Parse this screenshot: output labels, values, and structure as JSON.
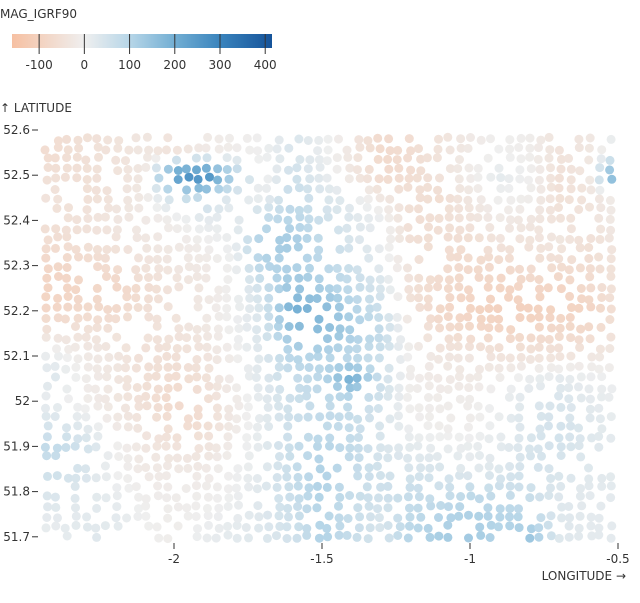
{
  "chart_data": {
    "type": "scatter",
    "color_legend": {
      "title": "MAG_IGRF90",
      "ticks": [
        -100,
        0,
        100,
        200,
        300,
        400
      ],
      "domain": [
        -160,
        415
      ],
      "scheme": "diverging red-blue",
      "colors": {
        "-160": "#f6c0a2",
        "0": "#efefef",
        "100": "#b7d6e8",
        "200": "#72aed3",
        "300": "#3a84bd",
        "415": "#15539a"
      }
    },
    "xlabel": "LONGITUDE →",
    "ylabel": "↑ LATITUDE",
    "x_ticks": [
      {
        "v": -2,
        "label": "-2"
      },
      {
        "v": -1.5,
        "label": "-1.5"
      },
      {
        "v": -1,
        "label": "-1"
      },
      {
        "v": -0.5,
        "label": "-0.5"
      }
    ],
    "y_ticks": [
      {
        "v": 52.6,
        "label": "52.6"
      },
      {
        "v": 52.5,
        "label": "52.5"
      },
      {
        "v": 52.4,
        "label": "52.4"
      },
      {
        "v": 52.3,
        "label": "52.3"
      },
      {
        "v": 52.2,
        "label": "52.2"
      },
      {
        "v": 52.1,
        "label": "52.1"
      },
      {
        "v": 52.0,
        "label": "52"
      },
      {
        "v": 51.9,
        "label": "51.9"
      },
      {
        "v": 51.8,
        "label": "51.8"
      },
      {
        "v": 51.7,
        "label": "51.7"
      }
    ],
    "xlim": [
      -2.45,
      -0.49
    ],
    "ylim": [
      51.69,
      52.62
    ],
    "grid": false,
    "note_values": "approximate MAG_IGRF90 values sampled on a longitude/latitude grid",
    "grid_lon": [
      -2.4,
      -2.3,
      -2.2,
      -2.1,
      -2.0,
      -1.9,
      -1.8,
      -1.7,
      -1.6,
      -1.5,
      -1.4,
      -1.3,
      -1.2,
      -1.1,
      -1.0,
      -0.9,
      -0.8,
      -0.7,
      -0.6,
      -0.5
    ],
    "grid_lat": [
      52.55,
      52.5,
      52.45,
      52.4,
      52.35,
      52.3,
      52.25,
      52.2,
      52.15,
      52.1,
      52.05,
      52.0,
      51.95,
      51.9,
      51.85,
      51.8,
      51.75,
      51.7
    ],
    "values": [
      [
        -60,
        -50,
        -40,
        -30,
        -40,
        -20,
        -10,
        0,
        40,
        10,
        -30,
        -70,
        -60,
        -40,
        -20,
        0,
        -10,
        -40,
        -30,
        20
      ],
      [
        -50,
        -50,
        -40,
        -30,
        250,
        300,
        120,
        -10,
        60,
        20,
        -30,
        -70,
        -60,
        -40,
        -10,
        20,
        0,
        -50,
        -30,
        250
      ],
      [
        -40,
        -50,
        -40,
        -20,
        60,
        80,
        20,
        10,
        80,
        40,
        20,
        -30,
        -50,
        -60,
        -30,
        0,
        -10,
        -50,
        -40,
        -10
      ],
      [
        -50,
        -40,
        -30,
        -20,
        -10,
        20,
        10,
        80,
        100,
        60,
        30,
        10,
        -60,
        -50,
        -40,
        -20,
        -30,
        -40,
        -40,
        -20
      ],
      [
        -60,
        -50,
        -40,
        -30,
        -20,
        -10,
        10,
        120,
        130,
        80,
        40,
        10,
        -50,
        -60,
        -60,
        -40,
        -40,
        -30,
        -50,
        -30
      ],
      [
        -80,
        -70,
        -60,
        -40,
        -30,
        -20,
        0,
        100,
        110,
        90,
        60,
        20,
        -40,
        -60,
        -70,
        -70,
        -60,
        -60,
        -60,
        -40
      ],
      [
        -90,
        -80,
        -80,
        -60,
        -40,
        -30,
        0,
        60,
        150,
        120,
        80,
        40,
        -50,
        -70,
        -80,
        -90,
        -80,
        -90,
        -70,
        -40
      ],
      [
        -80,
        -70,
        -70,
        -50,
        -40,
        -20,
        0,
        40,
        200,
        180,
        110,
        60,
        -40,
        -80,
        -90,
        -100,
        -100,
        -90,
        -90,
        -50
      ],
      [
        -40,
        -40,
        -40,
        -40,
        -40,
        -30,
        0,
        40,
        150,
        160,
        120,
        80,
        -20,
        -60,
        -70,
        -80,
        -80,
        -70,
        -70,
        -40
      ],
      [
        10,
        -20,
        -30,
        -50,
        -50,
        -40,
        -10,
        30,
        100,
        100,
        80,
        60,
        -10,
        -30,
        -30,
        -40,
        -40,
        -40,
        -30,
        -20
      ],
      [
        30,
        -10,
        -30,
        -50,
        -60,
        -50,
        -10,
        30,
        70,
        90,
        200,
        60,
        -10,
        -20,
        -20,
        -10,
        10,
        20,
        10,
        0
      ],
      [
        10,
        -10,
        -30,
        -50,
        -70,
        -60,
        -20,
        20,
        60,
        80,
        80,
        50,
        -10,
        -10,
        -10,
        10,
        30,
        40,
        20,
        10
      ],
      [
        40,
        20,
        -20,
        -40,
        -60,
        -60,
        -20,
        20,
        60,
        80,
        70,
        40,
        0,
        -10,
        -10,
        10,
        40,
        50,
        30,
        10
      ],
      [
        80,
        50,
        0,
        -30,
        -40,
        -40,
        -10,
        20,
        70,
        100,
        80,
        40,
        20,
        10,
        10,
        20,
        40,
        50,
        30,
        20
      ],
      [
        60,
        40,
        0,
        -20,
        -20,
        -20,
        0,
        20,
        70,
        110,
        80,
        50,
        40,
        40,
        20,
        30,
        50,
        40,
        30,
        20
      ],
      [
        40,
        30,
        10,
        -10,
        -10,
        -10,
        0,
        30,
        70,
        110,
        70,
        60,
        70,
        60,
        80,
        70,
        60,
        30,
        20,
        20
      ],
      [
        20,
        20,
        20,
        0,
        -10,
        0,
        10,
        30,
        60,
        100,
        70,
        40,
        80,
        100,
        110,
        100,
        90,
        30,
        20,
        20
      ],
      [
        10,
        30,
        20,
        0,
        -10,
        10,
        20,
        30,
        50,
        110,
        70,
        40,
        100,
        120,
        130,
        100,
        140,
        30,
        20,
        20
      ]
    ]
  }
}
